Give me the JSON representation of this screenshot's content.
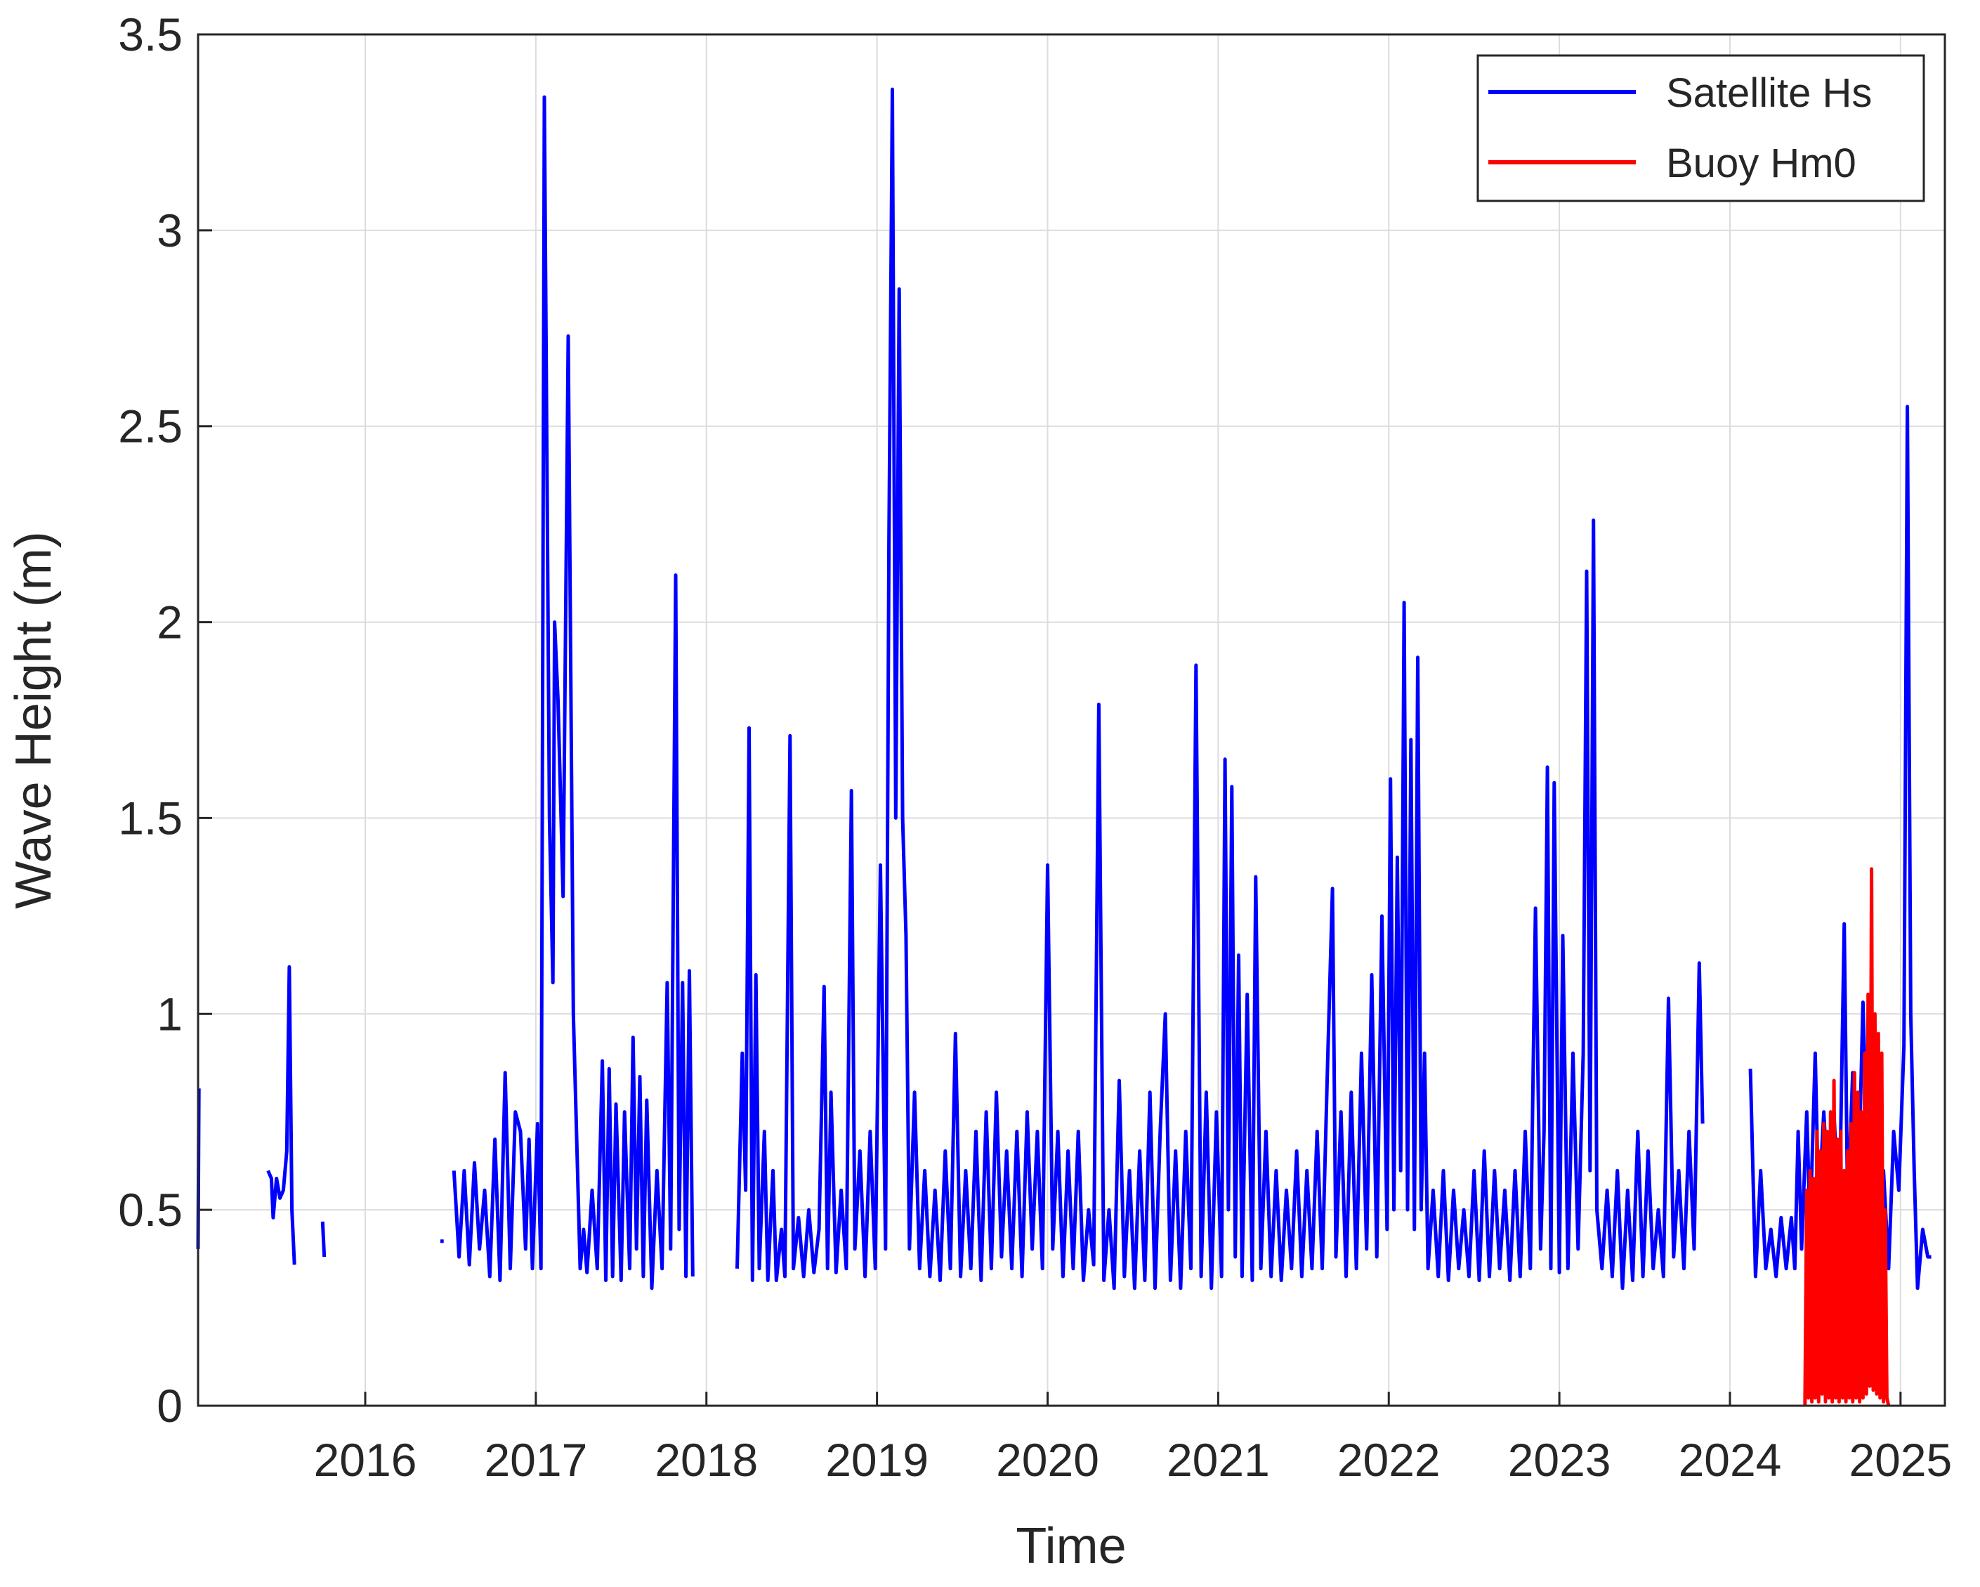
{
  "chart_data": {
    "type": "line",
    "x_label": "Time",
    "y_label": "Wave Height (m)",
    "xlim": [
      2015.02,
      2025.26
    ],
    "xticks": [
      2016,
      2017,
      2018,
      2019,
      2020,
      2021,
      2022,
      2023,
      2024,
      2025
    ],
    "ylim": [
      0,
      3.5
    ],
    "yticks": [
      0,
      0.5,
      1,
      1.5,
      2,
      2.5,
      3,
      3.5
    ],
    "grid": true,
    "legend": "upper-right",
    "series": [
      {
        "name": "Satellite Hs",
        "color": "#0000ff",
        "x": [
          2015.02,
          2015.025,
          2015.2,
          2015.43,
          2015.45,
          2015.46,
          2015.48,
          2015.5,
          2015.52,
          2015.54,
          2015.555,
          2015.57,
          2015.585,
          2015.67,
          2015.75,
          2015.76,
          2016.1,
          2016.44,
          2016.46,
          2016.49,
          2016.52,
          2016.55,
          2016.58,
          2016.61,
          2016.64,
          2016.67,
          2016.7,
          2016.73,
          2016.76,
          2016.79,
          2016.82,
          2016.85,
          2016.88,
          2016.91,
          2016.94,
          2016.96,
          2016.98,
          2017.01,
          2017.03,
          2017.05,
          2017.08,
          2017.1,
          2017.11,
          2017.13,
          2017.16,
          2017.19,
          2017.22,
          2017.26,
          2017.28,
          2017.3,
          2017.33,
          2017.36,
          2017.39,
          2017.41,
          2017.43,
          2017.45,
          2017.47,
          2017.5,
          2017.52,
          2017.55,
          2017.57,
          2017.59,
          2017.61,
          2017.63,
          2017.65,
          2017.68,
          2017.71,
          2017.74,
          2017.77,
          2017.79,
          2017.82,
          2017.84,
          2017.86,
          2017.88,
          2017.9,
          2017.92,
          2018.05,
          2018.18,
          2018.21,
          2018.23,
          2018.25,
          2018.27,
          2018.29,
          2018.31,
          2018.34,
          2018.36,
          2018.39,
          2018.41,
          2018.44,
          2018.46,
          2018.49,
          2018.51,
          2018.54,
          2018.57,
          2018.6,
          2018.63,
          2018.66,
          2018.69,
          2018.71,
          2018.73,
          2018.76,
          2018.79,
          2018.82,
          2018.85,
          2018.87,
          2018.9,
          2018.93,
          2018.96,
          2018.99,
          2019.02,
          2019.05,
          2019.07,
          2019.09,
          2019.11,
          2019.13,
          2019.15,
          2019.17,
          2019.19,
          2019.22,
          2019.25,
          2019.28,
          2019.31,
          2019.34,
          2019.37,
          2019.4,
          2019.43,
          2019.46,
          2019.49,
          2019.52,
          2019.55,
          2019.58,
          2019.61,
          2019.64,
          2019.67,
          2019.7,
          2019.73,
          2019.76,
          2019.79,
          2019.82,
          2019.85,
          2019.88,
          2019.91,
          2019.94,
          2019.97,
          2020.0,
          2020.03,
          2020.06,
          2020.09,
          2020.12,
          2020.15,
          2020.18,
          2020.21,
          2020.24,
          2020.27,
          2020.3,
          2020.33,
          2020.36,
          2020.39,
          2020.42,
          2020.45,
          2020.48,
          2020.51,
          2020.54,
          2020.57,
          2020.6,
          2020.63,
          2020.66,
          2020.69,
          2020.72,
          2020.75,
          2020.78,
          2020.81,
          2020.84,
          2020.87,
          2020.9,
          2020.93,
          2020.96,
          2020.99,
          2021.02,
          2021.04,
          2021.06,
          2021.08,
          2021.1,
          2021.12,
          2021.14,
          2021.17,
          2021.2,
          2021.22,
          2021.25,
          2021.28,
          2021.31,
          2021.34,
          2021.37,
          2021.4,
          2021.43,
          2021.46,
          2021.49,
          2021.52,
          2021.55,
          2021.58,
          2021.61,
          2021.64,
          2021.67,
          2021.69,
          2021.72,
          2021.75,
          2021.78,
          2021.81,
          2021.84,
          2021.87,
          2021.9,
          2021.93,
          2021.96,
          2021.99,
          2022.01,
          2022.03,
          2022.05,
          2022.07,
          2022.09,
          2022.11,
          2022.13,
          2022.15,
          2022.17,
          2022.19,
          2022.21,
          2022.23,
          2022.26,
          2022.29,
          2022.32,
          2022.35,
          2022.38,
          2022.41,
          2022.44,
          2022.47,
          2022.5,
          2022.53,
          2022.56,
          2022.59,
          2022.62,
          2022.65,
          2022.68,
          2022.71,
          2022.74,
          2022.77,
          2022.8,
          2022.83,
          2022.86,
          2022.89,
          2022.91,
          2022.93,
          2022.95,
          2022.97,
          2023.0,
          2023.02,
          2023.05,
          2023.08,
          2023.11,
          2023.14,
          2023.16,
          2023.18,
          2023.2,
          2023.22,
          2023.25,
          2023.28,
          2023.31,
          2023.34,
          2023.37,
          2023.4,
          2023.43,
          2023.46,
          2023.49,
          2023.52,
          2023.55,
          2023.58,
          2023.61,
          2023.64,
          2023.67,
          2023.7,
          2023.73,
          2023.76,
          2023.79,
          2023.82,
          2023.84,
          2024.0,
          2024.12,
          2024.15,
          2024.18,
          2024.21,
          2024.24,
          2024.27,
          2024.3,
          2024.33,
          2024.36,
          2024.38,
          2024.4,
          2024.42,
          2024.45,
          2024.47,
          2024.5,
          2024.52,
          2024.55,
          2024.58,
          2024.61,
          2024.64,
          2024.67,
          2024.69,
          2024.72,
          2024.75,
          2024.78,
          2024.81,
          2024.84,
          2024.87,
          2024.9,
          2024.93,
          2024.96,
          2024.99,
          2025.02,
          2025.04,
          2025.06,
          2025.08,
          2025.1,
          2025.13,
          2025.16,
          2025.18
        ],
        "values": [
          0.4,
          0.81,
          null,
          0.6,
          0.58,
          0.48,
          0.58,
          0.53,
          0.55,
          0.65,
          1.12,
          0.5,
          0.36,
          null,
          0.47,
          0.38,
          null,
          0.42,
          0.42,
          null,
          0.6,
          0.38,
          0.6,
          0.36,
          0.62,
          0.4,
          0.55,
          0.33,
          0.68,
          0.32,
          0.85,
          0.35,
          0.75,
          0.7,
          0.4,
          0.68,
          0.35,
          0.72,
          0.35,
          3.34,
          1.5,
          1.08,
          2.0,
          1.8,
          1.3,
          2.73,
          1.0,
          0.35,
          0.45,
          0.34,
          0.55,
          0.35,
          0.88,
          0.32,
          0.86,
          0.33,
          0.77,
          0.32,
          0.75,
          0.35,
          0.94,
          0.4,
          0.84,
          0.33,
          0.78,
          0.3,
          0.6,
          0.35,
          1.08,
          0.4,
          2.12,
          0.45,
          1.08,
          0.33,
          1.11,
          0.33,
          null,
          0.35,
          0.9,
          0.55,
          1.73,
          0.32,
          1.1,
          0.35,
          0.7,
          0.32,
          0.6,
          0.32,
          0.45,
          0.33,
          1.71,
          0.35,
          0.48,
          0.33,
          0.5,
          0.34,
          0.45,
          1.07,
          0.35,
          0.8,
          0.34,
          0.55,
          0.35,
          1.57,
          0.4,
          0.65,
          0.33,
          0.7,
          0.35,
          1.38,
          0.4,
          2.2,
          3.36,
          1.5,
          2.85,
          1.5,
          1.2,
          0.4,
          0.8,
          0.35,
          0.6,
          0.33,
          0.55,
          0.32,
          0.65,
          0.35,
          0.95,
          0.33,
          0.6,
          0.35,
          0.7,
          0.32,
          0.75,
          0.35,
          0.8,
          0.38,
          0.65,
          0.35,
          0.7,
          0.33,
          0.75,
          0.4,
          0.7,
          0.35,
          1.38,
          0.4,
          0.7,
          0.33,
          0.65,
          0.35,
          0.7,
          0.32,
          0.5,
          0.36,
          1.79,
          0.32,
          0.5,
          0.3,
          0.83,
          0.33,
          0.6,
          0.3,
          0.65,
          0.32,
          0.8,
          0.3,
          0.7,
          1.0,
          0.32,
          0.65,
          0.3,
          0.7,
          0.35,
          1.89,
          0.33,
          0.8,
          0.3,
          0.75,
          0.33,
          1.65,
          0.5,
          1.58,
          0.38,
          1.15,
          0.33,
          1.05,
          0.32,
          1.35,
          0.35,
          0.7,
          0.33,
          0.6,
          0.32,
          0.55,
          0.35,
          0.65,
          0.33,
          0.6,
          0.35,
          0.7,
          0.35,
          0.85,
          1.32,
          0.38,
          0.75,
          0.33,
          0.8,
          0.35,
          0.9,
          0.4,
          1.1,
          0.38,
          1.25,
          0.45,
          1.6,
          0.5,
          1.4,
          0.6,
          2.05,
          0.5,
          1.7,
          0.45,
          1.91,
          0.5,
          0.9,
          0.35,
          0.55,
          0.33,
          0.6,
          0.32,
          0.55,
          0.35,
          0.5,
          0.33,
          0.6,
          0.32,
          0.65,
          0.33,
          0.6,
          0.35,
          0.55,
          0.32,
          0.6,
          0.33,
          0.7,
          0.35,
          1.27,
          0.4,
          0.7,
          1.63,
          0.35,
          1.59,
          0.34,
          1.2,
          0.35,
          0.9,
          0.4,
          0.9,
          2.13,
          0.6,
          2.26,
          0.5,
          0.35,
          0.55,
          0.33,
          0.6,
          0.3,
          0.55,
          0.32,
          0.7,
          0.33,
          0.65,
          0.35,
          0.5,
          0.33,
          1.04,
          0.38,
          0.6,
          0.35,
          0.7,
          0.4,
          1.13,
          0.72,
          null,
          0.86,
          0.33,
          0.6,
          0.35,
          0.45,
          0.33,
          0.48,
          0.35,
          0.48,
          0.35,
          0.7,
          0.4,
          0.75,
          0.45,
          0.9,
          0.5,
          0.75,
          0.5,
          0.75,
          0.45,
          1.23,
          0.5,
          0.85,
          0.5,
          1.03,
          0.55,
          0.9,
          0.45,
          0.6,
          0.35,
          0.7,
          0.55,
          0.92,
          2.55,
          1.0,
          0.6,
          0.3,
          0.45,
          0.38,
          0.38
        ]
      },
      {
        "name": "Buoy Hm0",
        "color": "#ff0000",
        "x": [
          2024.44,
          2024.45,
          2024.46,
          2024.47,
          2024.48,
          2024.49,
          2024.5,
          2024.51,
          2024.52,
          2024.53,
          2024.54,
          2024.55,
          2024.56,
          2024.57,
          2024.58,
          2024.59,
          2024.6,
          2024.61,
          2024.62,
          2024.63,
          2024.64,
          2024.65,
          2024.66,
          2024.67,
          2024.68,
          2024.69,
          2024.7,
          2024.71,
          2024.72,
          2024.73,
          2024.74,
          2024.75,
          2024.76,
          2024.77,
          2024.78,
          2024.79,
          2024.8,
          2024.81,
          2024.82,
          2024.83,
          2024.84,
          2024.85,
          2024.86,
          2024.87,
          2024.88,
          2024.89,
          2024.9,
          2024.91,
          2024.92,
          2024.93
        ],
        "values": [
          0.0,
          0.55,
          0.02,
          0.6,
          0.01,
          0.58,
          0.02,
          0.7,
          0.01,
          0.65,
          0.03,
          0.72,
          0.01,
          0.7,
          0.02,
          0.75,
          0.01,
          0.83,
          0.02,
          0.68,
          0.01,
          0.7,
          0.02,
          0.6,
          0.01,
          0.65,
          0.02,
          0.72,
          0.01,
          0.85,
          0.02,
          0.8,
          0.01,
          0.75,
          0.02,
          0.9,
          0.03,
          1.05,
          0.05,
          1.37,
          0.04,
          1.0,
          0.03,
          0.95,
          0.02,
          0.9,
          0.01,
          0.5,
          0.02,
          0.0
        ]
      }
    ]
  }
}
